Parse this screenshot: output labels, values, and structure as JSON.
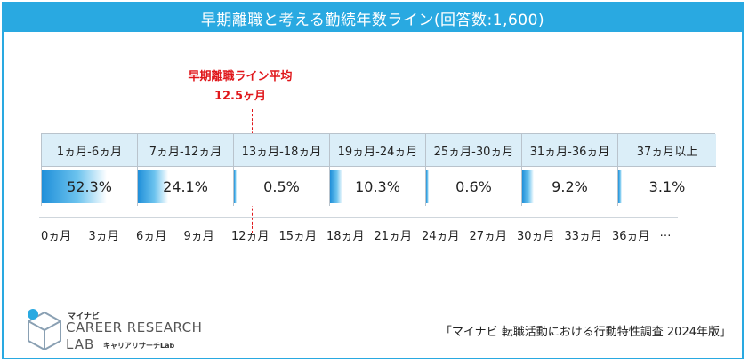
{
  "header": {
    "title": "早期離職と考える勤続年数ライン(回答数:1,600)"
  },
  "average": {
    "title": "早期離職ライン平均",
    "value_label": "12.5ヶ月",
    "value": 12.5
  },
  "chart_data": {
    "type": "table",
    "title": "早期離職と考える勤続年数ライン(回答数:1,600)",
    "categories": [
      "1ヵ月-6ヵ月",
      "7ヵ月-12ヵ月",
      "13ヵ月-18ヵ月",
      "19ヵ月-24ヵ月",
      "25ヵ月-30ヵ月",
      "31ヵ月-36ヵ月",
      "37ヵ月以上"
    ],
    "values": [
      52.3,
      24.1,
      0.5,
      10.3,
      0.6,
      9.2,
      3.1
    ],
    "value_labels": [
      "52.3%",
      "24.1%",
      "0.5%",
      "10.3%",
      "0.6%",
      "9.2%",
      "3.1%"
    ],
    "x_ticks": [
      "0ヵ月",
      "3ヵ月",
      "6ヵ月",
      "9ヵ月",
      "12ヵ月",
      "15ヵ月",
      "18ヵ月",
      "21ヵ月",
      "24ヵ月",
      "27ヵ月",
      "30ヵ月",
      "33ヵ月",
      "36ヵ月",
      "…"
    ],
    "annotation": {
      "label": "早期離職ライン平均",
      "value_label": "12.5ヶ月",
      "x": 12.5
    }
  },
  "brand": {
    "small": "マイナビ",
    "main": "CAREER RESEARCH",
    "lab": "LAB",
    "sub": "キャリアリサーチLab"
  },
  "source": "「マイナビ 転職活動における行動特性調査 2024年版」"
}
